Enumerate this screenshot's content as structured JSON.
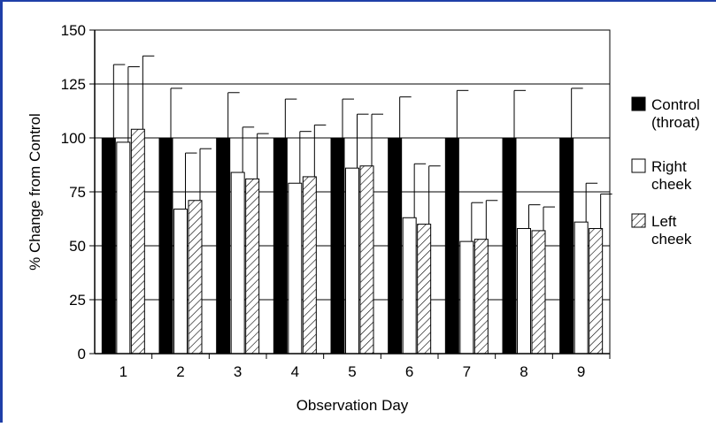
{
  "chart_data": {
    "type": "bar",
    "title": "",
    "xlabel": "Observation Day",
    "ylabel": "% Change from Control",
    "ylim": [
      0,
      150
    ],
    "yticks": [
      0,
      25,
      50,
      75,
      100,
      125,
      150
    ],
    "grid": "horizontal",
    "legend_position": "right",
    "categories": [
      "1",
      "2",
      "3",
      "4",
      "5",
      "6",
      "7",
      "8",
      "9"
    ],
    "series": [
      {
        "name_lines": [
          "Control",
          "(throat)"
        ],
        "fill": "solid-black",
        "values": [
          100,
          100,
          100,
          100,
          100,
          100,
          100,
          100,
          100
        ],
        "error_upper": [
          134,
          123,
          121,
          118,
          118,
          119,
          122,
          122,
          123
        ]
      },
      {
        "name_lines": [
          "Right",
          "cheek"
        ],
        "fill": "white",
        "values": [
          98,
          67,
          84,
          79,
          86,
          63,
          52,
          58,
          61
        ],
        "error_upper": [
          133,
          93,
          105,
          103,
          111,
          88,
          70,
          69,
          79
        ]
      },
      {
        "name_lines": [
          "Left",
          "cheek"
        ],
        "fill": "diagonal-hatch",
        "values": [
          104,
          71,
          81,
          82,
          87,
          60,
          53,
          57,
          58
        ],
        "error_upper": [
          138,
          95,
          102,
          106,
          111,
          87,
          71,
          68,
          74
        ]
      }
    ]
  }
}
